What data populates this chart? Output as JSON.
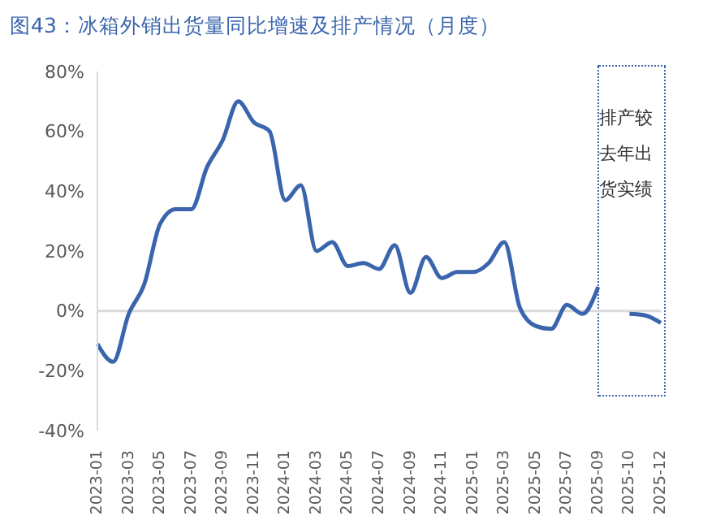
{
  "chart_data": {
    "type": "line",
    "title": "图43：冰箱外销出货量同比增速及排产情况（月度）",
    "categories": [
      "2023-01",
      null,
      "2023-03",
      null,
      "2023-05",
      null,
      "2023-07",
      null,
      "2023-09",
      null,
      "2023-11",
      null,
      "2024-01",
      null,
      "2024-03",
      null,
      "2024-05",
      null,
      "2024-07",
      null,
      "2024-09",
      null,
      "2024-11",
      null,
      "2025-01",
      null,
      "2025-03",
      null,
      "2025-05",
      null,
      "2025-07",
      null,
      "2025-09",
      null,
      "2025-10",
      null,
      "2025-12"
    ],
    "series": [
      {
        "color": "#3a65ad",
        "values": [
          -11,
          -17,
          -1,
          9,
          29,
          34,
          34,
          48,
          57,
          70,
          63,
          60,
          37,
          42,
          20,
          23,
          15,
          16,
          14,
          22,
          6,
          18,
          11,
          13,
          13,
          16,
          23,
          1,
          -5,
          -6,
          2,
          -1,
          8,
          null,
          null,
          null,
          null
        ]
      },
      {
        "color": "#3a65ad",
        "values": [
          null,
          null,
          null,
          null,
          null,
          null,
          null,
          null,
          null,
          null,
          null,
          null,
          null,
          null,
          null,
          null,
          null,
          null,
          null,
          null,
          null,
          null,
          null,
          null,
          null,
          null,
          null,
          null,
          null,
          null,
          null,
          null,
          null,
          null,
          -1,
          -1.5,
          -4
        ]
      }
    ],
    "ylim": [
      -40,
      80
    ],
    "yticks": [
      {
        "value": -40,
        "label": "-40%"
      },
      {
        "value": -20,
        "label": "-20%"
      },
      {
        "value": 0,
        "label": "0%"
      },
      {
        "value": 20,
        "label": "20%"
      },
      {
        "value": 40,
        "label": "40%"
      },
      {
        "value": 60,
        "label": "60%"
      },
      {
        "value": 80,
        "label": "80%"
      }
    ],
    "ref_lines": [
      {
        "axis": "y",
        "value": 0,
        "color": "#d9d9d9"
      }
    ],
    "annotations": [
      "排产较去年出货实绩"
    ],
    "marker": "none",
    "line_style": "solid",
    "grid": false
  }
}
